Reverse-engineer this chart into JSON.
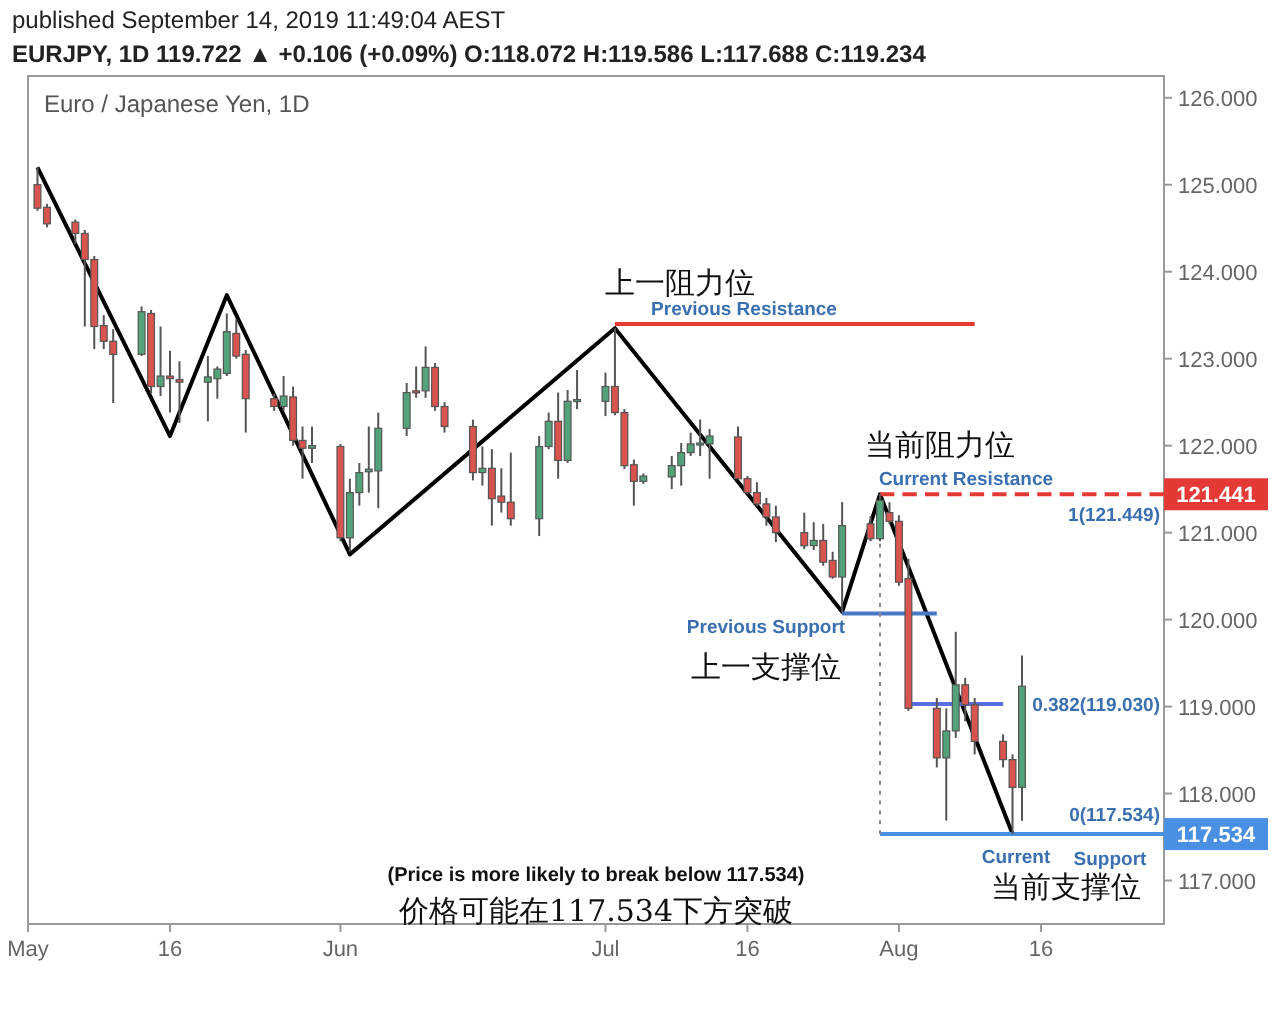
{
  "chart_data": {
    "type": "candlestick",
    "title": "Euro / Japanese Yen, 1D",
    "subtitle": "published September 14, 2019 11:49:04 AEST",
    "x": [
      "2019-05-02",
      "2019-05-03",
      "2019-05-06",
      "2019-05-07",
      "2019-05-08",
      "2019-05-09",
      "2019-05-10",
      "2019-05-13",
      "2019-05-14",
      "2019-05-15",
      "2019-05-16",
      "2019-05-17",
      "2019-05-20",
      "2019-05-21",
      "2019-05-22",
      "2019-05-23",
      "2019-05-24",
      "2019-05-27",
      "2019-05-28",
      "2019-05-29",
      "2019-05-30",
      "2019-05-31",
      "2019-06-03",
      "2019-06-04",
      "2019-06-05",
      "2019-06-06",
      "2019-06-07",
      "2019-06-10",
      "2019-06-11",
      "2019-06-12",
      "2019-06-13",
      "2019-06-14",
      "2019-06-17",
      "2019-06-18",
      "2019-06-19",
      "2019-06-20",
      "2019-06-21",
      "2019-06-24",
      "2019-06-25",
      "2019-06-26",
      "2019-06-27",
      "2019-06-28",
      "2019-07-01",
      "2019-07-02",
      "2019-07-03",
      "2019-07-04",
      "2019-07-05",
      "2019-07-08",
      "2019-07-09",
      "2019-07-10",
      "2019-07-11",
      "2019-07-12",
      "2019-07-15",
      "2019-07-16",
      "2019-07-17",
      "2019-07-18",
      "2019-07-19",
      "2019-07-22",
      "2019-07-23",
      "2019-07-24",
      "2019-07-25",
      "2019-07-26",
      "2019-07-29",
      "2019-07-30",
      "2019-07-31",
      "2019-08-01",
      "2019-08-02",
      "2019-08-05",
      "2019-08-06",
      "2019-08-07",
      "2019-08-08",
      "2019-08-09",
      "2019-08-12",
      "2019-08-13",
      "2019-08-14"
    ],
    "ohlc": [
      [
        125.0,
        125.2,
        124.7,
        124.73
      ],
      [
        124.74,
        124.78,
        124.51,
        124.55
      ],
      [
        124.57,
        124.6,
        124.32,
        124.44
      ],
      [
        124.44,
        124.48,
        123.37,
        124.14
      ],
      [
        124.14,
        124.18,
        123.11,
        123.37
      ],
      [
        123.38,
        123.5,
        123.11,
        123.2
      ],
      [
        123.2,
        123.34,
        122.49,
        123.05
      ],
      [
        123.05,
        123.6,
        123.03,
        123.54
      ],
      [
        123.52,
        123.56,
        122.6,
        122.68
      ],
      [
        122.68,
        123.37,
        122.57,
        122.8
      ],
      [
        122.8,
        123.09,
        122.38,
        122.77
      ],
      [
        122.76,
        122.97,
        122.26,
        122.73
      ],
      [
        122.73,
        123.03,
        122.28,
        122.79
      ],
      [
        122.77,
        122.91,
        122.54,
        122.88
      ],
      [
        122.83,
        123.52,
        122.8,
        123.31
      ],
      [
        123.29,
        123.45,
        123.0,
        123.03
      ],
      [
        123.05,
        123.1,
        122.15,
        122.54
      ],
      [
        122.54,
        122.6,
        122.4,
        122.45
      ],
      [
        122.45,
        122.8,
        122.4,
        122.57
      ],
      [
        122.56,
        122.68,
        122.0,
        122.06
      ],
      [
        122.06,
        122.22,
        121.62,
        121.97
      ],
      [
        121.97,
        122.22,
        121.8,
        122.0
      ],
      [
        121.99,
        122.02,
        120.9,
        120.94
      ],
      [
        120.94,
        121.62,
        120.78,
        121.46
      ],
      [
        121.46,
        121.8,
        121.31,
        121.69
      ],
      [
        121.7,
        122.22,
        121.46,
        121.73
      ],
      [
        121.71,
        122.38,
        121.28,
        122.2
      ],
      [
        122.2,
        122.72,
        122.11,
        122.61
      ],
      [
        122.63,
        122.91,
        122.55,
        122.62
      ],
      [
        122.63,
        123.14,
        122.55,
        122.9
      ],
      [
        122.9,
        122.95,
        122.4,
        122.45
      ],
      [
        122.45,
        122.5,
        122.15,
        122.22
      ],
      [
        122.22,
        122.3,
        121.6,
        121.69
      ],
      [
        121.69,
        121.99,
        121.54,
        121.74
      ],
      [
        121.74,
        121.96,
        121.08,
        121.39
      ],
      [
        121.42,
        121.74,
        121.23,
        121.35
      ],
      [
        121.35,
        121.92,
        121.08,
        121.16
      ],
      [
        121.16,
        122.11,
        120.96,
        121.99
      ],
      [
        121.99,
        122.38,
        121.96,
        122.28
      ],
      [
        122.28,
        122.61,
        121.62,
        121.83
      ],
      [
        121.83,
        122.64,
        121.8,
        122.51
      ],
      [
        122.52,
        122.87,
        122.42,
        122.53
      ],
      [
        122.51,
        122.84,
        122.34,
        122.68
      ],
      [
        122.68,
        123.35,
        122.35,
        122.38
      ],
      [
        122.38,
        122.42,
        121.73,
        121.77
      ],
      [
        121.78,
        121.84,
        121.31,
        121.59
      ],
      [
        121.59,
        121.68,
        121.56,
        121.65
      ],
      [
        121.64,
        121.88,
        121.5,
        121.77
      ],
      [
        121.77,
        122.03,
        121.54,
        121.92
      ],
      [
        121.92,
        122.15,
        121.88,
        122.02
      ],
      [
        122.02,
        122.3,
        121.88,
        122.03
      ],
      [
        122.02,
        122.19,
        121.62,
        122.11
      ],
      [
        122.1,
        122.22,
        121.62,
        121.62
      ],
      [
        121.62,
        121.65,
        121.44,
        121.46
      ],
      [
        121.46,
        121.58,
        121.3,
        121.33
      ],
      [
        121.33,
        121.4,
        121.08,
        121.18
      ],
      [
        121.18,
        121.31,
        120.89,
        121.0
      ],
      [
        121.0,
        121.23,
        120.81,
        120.85
      ],
      [
        120.85,
        121.12,
        120.8,
        120.91
      ],
      [
        120.91,
        121.1,
        120.62,
        120.66
      ],
      [
        120.68,
        120.78,
        120.47,
        120.49
      ],
      [
        120.49,
        121.35,
        120.09,
        121.08
      ],
      [
        121.1,
        121.19,
        120.9,
        120.93
      ],
      [
        120.93,
        121.441,
        120.9,
        121.37
      ],
      [
        121.23,
        121.35,
        121.1,
        121.13
      ],
      [
        121.13,
        121.2,
        120.39,
        120.43
      ],
      [
        120.47,
        120.7,
        118.95,
        118.98
      ],
      [
        118.98,
        119.1,
        118.3,
        118.41
      ],
      [
        118.41,
        118.98,
        117.69,
        118.72
      ],
      [
        118.72,
        119.86,
        118.64,
        119.25
      ],
      [
        119.25,
        119.33,
        118.83,
        119.02
      ],
      [
        119.02,
        119.1,
        118.45,
        118.6
      ],
      [
        118.6,
        118.68,
        118.3,
        118.39
      ],
      [
        118.39,
        118.45,
        117.534,
        118.07
      ],
      [
        118.072,
        119.586,
        117.688,
        119.234
      ]
    ],
    "colors": [
      "#d9534f",
      "#d9534f",
      "#d9534f",
      "#d9534f",
      "#d9534f",
      "#d9534f",
      "#d9534f",
      "#53a37a",
      "#d9534f",
      "#53a37a",
      "#d9534f",
      "#d9534f",
      "#53a37a",
      "#53a37a",
      "#53a37a",
      "#d9534f",
      "#d9534f",
      "#d9534f",
      "#53a37a",
      "#d9534f",
      "#d9534f",
      "#53a37a",
      "#d9534f",
      "#53a37a",
      "#53a37a",
      "#53a37a",
      "#53a37a",
      "#53a37a",
      "#d9534f",
      "#53a37a",
      "#d9534f",
      "#d9534f",
      "#d9534f",
      "#53a37a",
      "#d9534f",
      "#d9534f",
      "#d9534f",
      "#53a37a",
      "#53a37a",
      "#d9534f",
      "#53a37a",
      "#53a37a",
      "#53a37a",
      "#d9534f",
      "#d9534f",
      "#d9534f",
      "#53a37a",
      "#53a37a",
      "#53a37a",
      "#53a37a",
      "#53a37a",
      "#53a37a",
      "#d9534f",
      "#d9534f",
      "#d9534f",
      "#d9534f",
      "#d9534f",
      "#d9534f",
      "#53a37a",
      "#d9534f",
      "#d9534f",
      "#53a37a",
      "#d9534f",
      "#53a37a",
      "#d9534f",
      "#d9534f",
      "#d9534f",
      "#d9534f",
      "#53a37a",
      "#53a37a",
      "#d9534f",
      "#d9534f",
      "#d9534f",
      "#d9534f",
      "#53a37a"
    ],
    "series": [
      {
        "type": "line",
        "color": "#000000",
        "x": [
          "2019-05-02",
          "2019-05-16",
          "2019-05-22",
          "2019-06-04",
          "2019-07-02",
          "2019-07-26",
          "2019-07-30",
          "2019-08-13"
        ],
        "values": [
          125.2,
          122.11,
          123.73,
          120.75,
          123.35,
          120.09,
          121.441,
          117.534
        ]
      },
      {
        "type": "line",
        "color": "#e53935",
        "x": [
          "2019-07-02",
          "2019-08-09"
        ],
        "values": [
          123.4,
          123.4
        ]
      },
      {
        "type": "line",
        "color": "#e53935",
        "line_style": "dashed",
        "x": [
          "2019-07-30",
          "2019-08-29"
        ],
        "values": [
          121.441,
          121.441
        ],
        "value_labels": [
          null,
          "121.441"
        ]
      },
      {
        "type": "line",
        "color": "#4a78c8",
        "x": [
          "2019-07-26",
          "2019-08-05"
        ],
        "values": [
          120.07,
          120.07
        ]
      },
      {
        "type": "line",
        "color": "#5b6ee0",
        "x": [
          "2019-08-02",
          "2019-08-12"
        ],
        "values": [
          119.03,
          119.03
        ]
      },
      {
        "type": "line",
        "color": "#4a90e2",
        "x": [
          "2019-07-30",
          "2019-08-29"
        ],
        "values": [
          117.534,
          117.534
        ],
        "value_labels": [
          null,
          "117.534"
        ]
      },
      {
        "type": "line",
        "color": "#888888",
        "line_style": "dotted",
        "x": [
          "2019-07-30",
          "2019-07-30"
        ],
        "values": [
          121.441,
          117.534
        ]
      }
    ],
    "xlim": [
      "2019-05-01",
      "2019-08-29"
    ],
    "xticks": [
      {
        "value": "2019-05-01",
        "label": "May"
      },
      {
        "value": "2019-05-16",
        "label": "16"
      },
      {
        "value": "2019-06-03",
        "label": "Jun"
      },
      {
        "value": "2019-07-01",
        "label": "Jul"
      },
      {
        "value": "2019-07-16",
        "label": "16"
      },
      {
        "value": "2019-08-01",
        "label": "Aug"
      },
      {
        "value": "2019-08-16",
        "label": "16"
      }
    ],
    "ylim": [
      116.5,
      126.25
    ],
    "yticks": [
      {
        "value": 117,
        "label": "117.000"
      },
      {
        "value": 118,
        "label": "118.000"
      },
      {
        "value": 119,
        "label": "119.000"
      },
      {
        "value": 120,
        "label": "120.000"
      },
      {
        "value": 121,
        "label": "121.000"
      },
      {
        "value": 122,
        "label": "122.000"
      },
      {
        "value": 123,
        "label": "123.000"
      },
      {
        "value": 124,
        "label": "124.000"
      },
      {
        "value": 125,
        "label": "125.000"
      },
      {
        "value": 126,
        "label": "126.000"
      }
    ],
    "annotations": [
      "EURJPY, 1D  119.722 ▲ +0.106 (+0.09%)  O:118.072  H:119.586  L:117.688  C:119.234",
      "(Price is more likely to break below 117.534)",
      "价格可能在117.534下方突破",
      "上一阻力位",
      "Previous Resistance",
      "当前阻力位",
      "Current Resistance",
      "1(121.449)",
      "Previous Support",
      "上一支撑位",
      "0.382(119.030)",
      "0(117.534)",
      "Current",
      "Support",
      "当前支撑位"
    ]
  }
}
